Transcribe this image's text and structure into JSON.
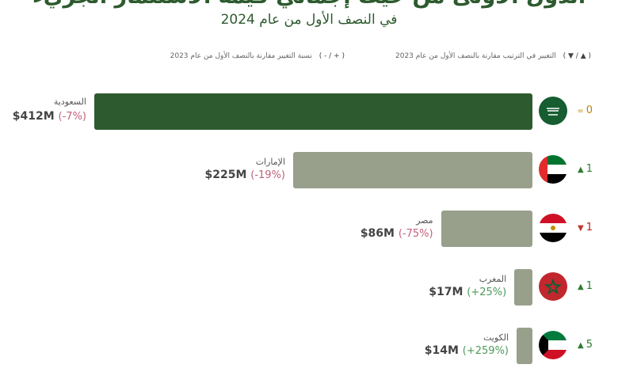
{
  "title": "الدول الأولى من حيث إجمالي قيمة الاستثمار الجريء",
  "subtitle": "في النصف الأول من عام 2024",
  "legend": {
    "rank_symbol": "( ▲ / ▼ )",
    "rank_text": "التغيير في الترتيب مقارنة بالنصف الأول من عام 2023",
    "pct_symbol": "( + / - )",
    "pct_text": "نسبة التغيير مقارنة بالنصف الأول من عام 2023"
  },
  "colors": {
    "top_bar": "#2d5a2e",
    "other_bar": "#98a08c",
    "negative": "#c2607a",
    "positive": "#4c9a5a"
  },
  "chart_data": {
    "type": "bar",
    "orientation": "horizontal",
    "unit": "$M",
    "categories": [
      "السعودية",
      "الإمارات",
      "مصر",
      "المغرب",
      "الكويت"
    ],
    "values": [
      412,
      225,
      86,
      17,
      14
    ],
    "value_labels": [
      "$412M",
      "$225M",
      "$86M",
      "$17M",
      "$14M"
    ],
    "pct_change_labels": [
      "(-7%)",
      "(-19%)",
      "(-75%)",
      "(+25%)",
      "(+259%)"
    ],
    "rank_change": [
      "= 0",
      "▲ 1",
      "▼ 1",
      "▲ 1",
      "▲ 5"
    ],
    "flags": [
      "saudi-flag-icon",
      "uae-flag-icon",
      "egypt-flag-icon",
      "morocco-flag-icon",
      "kuwait-flag-icon"
    ]
  }
}
